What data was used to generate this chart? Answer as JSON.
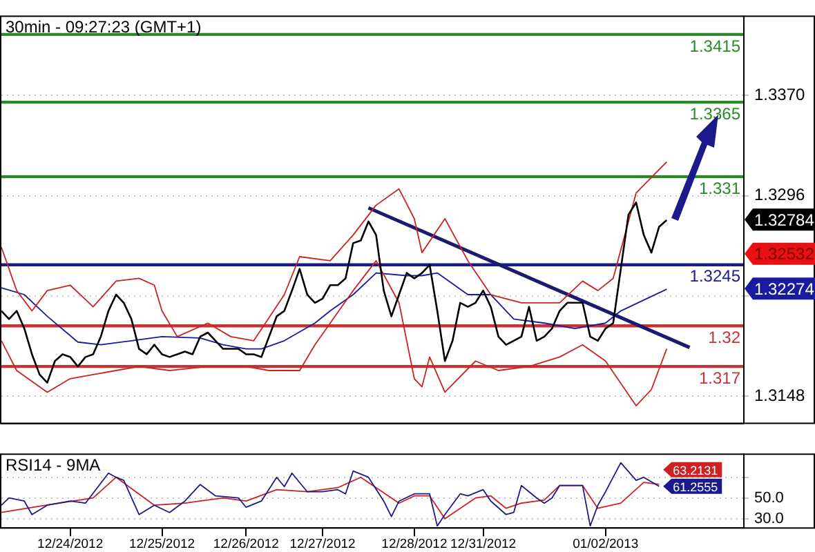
{
  "chart_data": [
    {
      "type": "line",
      "title": "30min - 09:27:23 (GMT+1)",
      "categories": [
        null,
        null,
        null,
        null,
        null,
        null,
        null,
        null,
        null,
        null,
        null,
        null,
        null,
        null,
        null,
        null,
        null,
        null,
        null,
        null,
        null,
        null,
        null,
        null,
        null,
        null,
        null,
        null,
        null,
        null,
        null,
        null,
        null,
        null,
        null,
        null,
        null,
        null,
        null,
        null,
        null,
        null,
        null,
        null,
        null,
        null,
        null,
        null,
        null,
        null,
        null,
        null,
        null,
        null,
        null,
        null,
        null,
        null,
        null,
        null,
        null,
        null,
        null,
        null,
        null,
        null,
        null,
        null,
        null,
        null,
        null,
        null,
        null,
        null,
        null,
        null,
        null,
        null,
        null,
        null,
        null,
        null,
        null,
        null,
        null,
        null,
        null,
        null,
        null,
        null,
        null,
        null,
        null,
        null,
        null,
        null,
        null,
        null
      ],
      "ylim": [
        1.3128,
        1.3429
      ],
      "yticks": [
        {
          "value": 1.337,
          "label": "1.3370"
        },
        {
          "value": 1.3296,
          "label": "1.3296"
        },
        {
          "value": 1.3222,
          "label": null
        },
        {
          "value": 1.3148,
          "label": "1.3148"
        },
        {
          "value": 1.32784,
          "label": "1.32784"
        },
        {
          "value": 1.32532,
          "label": "1.32532"
        },
        {
          "value": 1.32274,
          "label": "1.32274"
        }
      ],
      "tick_labels": "y",
      "grid": "y",
      "legend": false,
      "marker": "none",
      "series": [
        {
          "color": "#000000",
          "values": [
            1.3211,
            1.3205,
            1.3211,
            1.3198,
            1.3179,
            1.3164,
            1.3158,
            1.3174,
            1.3179,
            1.3177,
            1.317,
            1.3177,
            1.3179,
            1.3192,
            1.3211,
            1.3223,
            1.3217,
            1.3205,
            1.3183,
            1.3179,
            1.3186,
            1.3179,
            1.3177,
            1.3179,
            1.3181,
            1.3179,
            1.3192,
            1.3195,
            1.3189,
            1.3183,
            1.3183,
            1.3183,
            1.3179,
            1.3179,
            1.3177,
            1.3192,
            1.3207,
            1.3211,
            1.3226,
            1.3242,
            1.3223,
            1.3217,
            1.322,
            1.323,
            1.323,
            1.3235,
            1.3261,
            1.3263,
            1.3277,
            1.3267,
            1.3226,
            1.3207,
            1.3223,
            1.3239,
            1.3235,
            1.3239,
            1.3245,
            1.3211,
            1.3174,
            1.3189,
            1.3217,
            1.3214,
            1.3217,
            1.3226,
            1.3214,
            1.3192,
            1.3186,
            1.3189,
            1.3192,
            1.3214,
            1.3189,
            1.3192,
            1.3198,
            1.3211,
            1.3217,
            1.3217,
            1.3217,
            1.3192,
            1.3189,
            1.3198,
            1.3202,
            1.3242,
            1.3282,
            1.3291,
            1.3267,
            1.3254,
            1.3273,
            1.3278,
            null,
            null,
            null,
            null,
            null,
            null,
            null,
            null,
            null,
            null
          ]
        },
        {
          "color": "#cc2222",
          "values": [
            1.3258,
            null,
            1.3226,
            null,
            1.3211,
            null,
            1.3226,
            null,
            null,
            1.323,
            null,
            null,
            1.3214,
            null,
            null,
            1.3233,
            null,
            null,
            1.3235,
            null,
            1.323,
            1.3211,
            null,
            1.3192,
            null,
            null,
            null,
            1.3202,
            null,
            null,
            1.3192,
            null,
            null,
            1.3189,
            null,
            null,
            null,
            1.3223,
            null,
            1.3251,
            null,
            null,
            null,
            1.3248,
            null,
            null,
            1.3267,
            null,
            null,
            1.3289,
            null,
            null,
            1.3301,
            null,
            1.3279,
            1.3254,
            null,
            null,
            1.3279,
            null,
            null,
            1.3248,
            null,
            null,
            1.3223,
            null,
            null,
            null,
            1.3217,
            null,
            null,
            null,
            null,
            1.3217,
            null,
            null,
            1.3233,
            null,
            1.3226,
            null,
            1.3235,
            null,
            null,
            1.3298,
            null,
            null,
            null,
            1.3321,
            null,
            null,
            null,
            null,
            null,
            null,
            null,
            null,
            null,
            null
          ]
        },
        {
          "color": "#cc2222",
          "values": [
            1.3189,
            null,
            1.3167,
            null,
            null,
            null,
            1.3151,
            null,
            null,
            1.3161,
            null,
            null,
            1.3164,
            null,
            null,
            1.3167,
            null,
            null,
            1.317,
            null,
            null,
            null,
            1.3167,
            null,
            null,
            null,
            null,
            1.317,
            null,
            null,
            null,
            null,
            1.317,
            null,
            null,
            1.3167,
            null,
            null,
            null,
            1.3167,
            null,
            1.3186,
            null,
            1.3202,
            null,
            null,
            1.3226,
            null,
            null,
            1.3248,
            null,
            null,
            1.3217,
            null,
            1.3161,
            1.3155,
            1.3177,
            null,
            1.3151,
            null,
            null,
            null,
            1.3174,
            null,
            null,
            1.3167,
            null,
            null,
            null,
            1.317,
            null,
            null,
            null,
            1.3177,
            null,
            null,
            1.3186,
            null,
            null,
            1.3174,
            null,
            null,
            null,
            1.3141,
            null,
            1.3153,
            null,
            1.3183,
            null,
            null,
            null,
            null,
            null,
            null,
            null,
            null,
            null,
            null
          ]
        },
        {
          "color": "#1a1aa0",
          "values": [
            1.3228,
            null,
            null,
            1.3223,
            null,
            null,
            1.3207,
            null,
            null,
            null,
            1.3188,
            null,
            null,
            1.3186,
            null,
            null,
            null,
            1.3189,
            null,
            null,
            null,
            1.3192,
            null,
            null,
            null,
            null,
            1.3191,
            null,
            null,
            1.3186,
            null,
            null,
            1.3183,
            null,
            1.3183,
            null,
            null,
            1.3189,
            null,
            null,
            null,
            1.3202,
            null,
            1.3211,
            null,
            null,
            1.3223,
            null,
            null,
            1.3239,
            null,
            null,
            null,
            1.3237,
            null,
            1.3237,
            null,
            1.3239,
            null,
            null,
            null,
            1.3223,
            null,
            null,
            1.3223,
            null,
            null,
            1.3205,
            null,
            null,
            null,
            1.3202,
            null,
            null,
            null,
            1.3198,
            null,
            null,
            null,
            1.3202,
            null,
            1.3211,
            null,
            null,
            null,
            null,
            null,
            1.3227,
            null,
            null,
            null,
            null,
            null,
            null,
            null,
            null,
            null,
            null
          ]
        },
        {
          "type": "line",
          "color": "#1a1a6e",
          "values": [
            null,
            null,
            null,
            null,
            null,
            null,
            null,
            null,
            null,
            null,
            null,
            null,
            null,
            null,
            null,
            null,
            null,
            null,
            null,
            null,
            null,
            null,
            null,
            null,
            null,
            null,
            null,
            null,
            null,
            null,
            null,
            null,
            null,
            null,
            null,
            null,
            null,
            null,
            null,
            null,
            null,
            null,
            null,
            null,
            null,
            null,
            null,
            null,
            1.3287,
            null,
            null,
            null,
            null,
            null,
            null,
            null,
            null,
            null,
            null,
            null,
            null,
            null,
            null,
            null,
            null,
            null,
            null,
            null,
            null,
            null,
            null,
            null,
            null,
            null,
            null,
            null,
            null,
            null,
            null,
            null,
            null,
            null,
            null,
            null,
            null,
            null,
            null,
            null,
            null,
            null,
            1.3184,
            null,
            null,
            null,
            null,
            null,
            null,
            null
          ]
        }
      ],
      "ref_lines": [
        {
          "axis": "y",
          "value": 1.3415,
          "label": "1.3415",
          "color": "#2a8a2a"
        },
        {
          "axis": "y",
          "value": 1.3365,
          "label": "1.3365",
          "color": "#2a8a2a"
        },
        {
          "axis": "y",
          "value": 1.331,
          "label": "1.331",
          "color": "#2a8a2a"
        },
        {
          "axis": "y",
          "value": 1.3245,
          "label": "1.3245",
          "color": "#1a1a8c"
        },
        {
          "axis": "y",
          "value": 1.32,
          "label": "1.32",
          "color": "#c83232"
        },
        {
          "axis": "y",
          "value": 1.317,
          "label": "1.317",
          "color": "#c83232"
        }
      ]
    },
    {
      "type": "line",
      "title": "RSI14 - 9MA",
      "categories": [
        null,
        null,
        null,
        null,
        null,
        null,
        null,
        null,
        null,
        "12/24/2012",
        null,
        null,
        null,
        null,
        null,
        null,
        null,
        null,
        null,
        null,
        null,
        "12/25/2012",
        null,
        null,
        null,
        null,
        null,
        null,
        null,
        null,
        null,
        null,
        "12/26/2012",
        null,
        null,
        null,
        null,
        null,
        null,
        null,
        null,
        null,
        "12/27/2012",
        null,
        null,
        null,
        null,
        null,
        null,
        null,
        null,
        null,
        null,
        null,
        "12/28/2012",
        null,
        null,
        null,
        null,
        null,
        null,
        null,
        null,
        "12/31/2012",
        null,
        null,
        null,
        null,
        null,
        null,
        null,
        null,
        null,
        null,
        null,
        null,
        null,
        null,
        null,
        "01/02/2013",
        null,
        null,
        null,
        null,
        null,
        null,
        null,
        null,
        null,
        null,
        null,
        null,
        null,
        null,
        null,
        null,
        null,
        null
      ],
      "ylim": [
        21,
        93
      ],
      "yticks": [
        {
          "value": 70,
          "label": null
        },
        {
          "value": 50,
          "label": "50.0"
        },
        {
          "value": 30,
          "label": "30.0"
        }
      ],
      "grid": "y",
      "legend": false,
      "marker": "none",
      "series": [
        {
          "color": "#1a1a8c",
          "values": [
            43,
            50,
            null,
            47,
            34,
            null,
            43,
            null,
            null,
            47,
            null,
            45,
            null,
            null,
            74,
            70,
            67,
            null,
            34,
            null,
            43,
            null,
            36,
            null,
            47,
            null,
            63,
            null,
            52,
            null,
            null,
            50,
            41,
            null,
            47,
            null,
            70,
            61,
            74,
            null,
            56,
            null,
            56,
            null,
            58,
            54,
            76,
            null,
            70,
            null,
            47,
            32,
            47,
            null,
            54,
            null,
            54,
            23,
            34,
            null,
            54,
            52,
            null,
            58,
            47,
            null,
            34,
            36,
            62,
            null,
            50,
            45,
            50,
            62,
            null,
            null,
            62,
            23,
            43,
            56,
            null,
            84,
            null,
            67,
            70,
            null,
            61.2555,
            null,
            null,
            null,
            null,
            null,
            null,
            null,
            null,
            null,
            null,
            null
          ],
          "value_labels": [
            null,
            null,
            null,
            null,
            null,
            null,
            null,
            null,
            null,
            null,
            null,
            null,
            null,
            null,
            null,
            null,
            null,
            null,
            null,
            null,
            null,
            null,
            null,
            null,
            null,
            null,
            null,
            null,
            null,
            null,
            null,
            null,
            null,
            null,
            null,
            null,
            null,
            null,
            null,
            null,
            null,
            null,
            null,
            null,
            null,
            null,
            null,
            null,
            null,
            null,
            null,
            null,
            null,
            null,
            null,
            null,
            null,
            null,
            null,
            null,
            null,
            null,
            null,
            null,
            null,
            null,
            null,
            null,
            null,
            null,
            null,
            null,
            null,
            null,
            null,
            null,
            null,
            null,
            null,
            null,
            null,
            null,
            null,
            null,
            null,
            null,
            "61.2555",
            null,
            null,
            null,
            null,
            null,
            null,
            null,
            null,
            null,
            null,
            null
          ]
        },
        {
          "color": "#cc2222",
          "values": [
            36,
            null,
            null,
            null,
            null,
            42,
            null,
            null,
            null,
            null,
            null,
            null,
            50,
            null,
            null,
            70,
            null,
            null,
            null,
            null,
            43,
            null,
            null,
            null,
            45,
            null,
            null,
            null,
            null,
            50,
            null,
            null,
            47,
            null,
            null,
            null,
            58,
            null,
            null,
            null,
            56,
            null,
            null,
            null,
            60,
            null,
            null,
            70,
            null,
            null,
            null,
            null,
            45,
            null,
            52,
            null,
            52,
            null,
            30,
            null,
            null,
            null,
            50,
            null,
            52,
            null,
            40,
            null,
            45,
            null,
            null,
            48,
            null,
            62,
            null,
            null,
            62,
            null,
            40,
            null,
            null,
            45,
            null,
            null,
            65,
            null,
            63.2131,
            null,
            null,
            null,
            null,
            null,
            null,
            null,
            null,
            null,
            null,
            null
          ],
          "value_labels": [
            null,
            null,
            null,
            null,
            null,
            null,
            null,
            null,
            null,
            null,
            null,
            null,
            null,
            null,
            null,
            null,
            null,
            null,
            null,
            null,
            null,
            null,
            null,
            null,
            null,
            null,
            null,
            null,
            null,
            null,
            null,
            null,
            null,
            null,
            null,
            null,
            null,
            null,
            null,
            null,
            null,
            null,
            null,
            null,
            null,
            null,
            null,
            null,
            null,
            null,
            null,
            null,
            null,
            null,
            null,
            null,
            null,
            null,
            null,
            null,
            null,
            null,
            null,
            null,
            null,
            null,
            null,
            null,
            null,
            null,
            null,
            null,
            null,
            null,
            null,
            null,
            null,
            null,
            null,
            null,
            null,
            null,
            null,
            null,
            null,
            null,
            "63.2131",
            null,
            null,
            null,
            null,
            null,
            null,
            null,
            null,
            null,
            null,
            null
          ]
        }
      ]
    }
  ]
}
